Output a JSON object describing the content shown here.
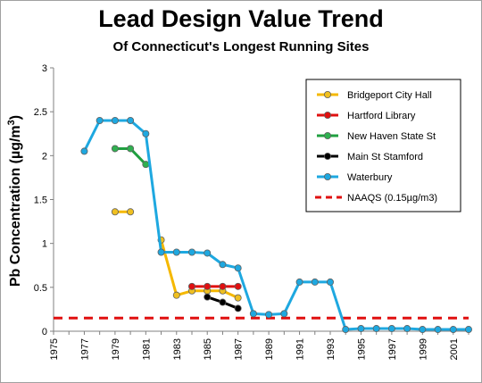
{
  "chart_data": {
    "type": "line",
    "title": "Lead Design Value Trend",
    "subtitle": "Of Connecticut's Longest Running Sites",
    "ylabel_main": "Pb Concentration  (µg/m",
    "ylabel_sup": "3",
    "ylabel_end": ")",
    "xlabel": "",
    "xlim": [
      1975,
      2002
    ],
    "ylim": [
      0,
      3
    ],
    "x_ticks": [
      "1975",
      "1977",
      "1979",
      "1981",
      "1983",
      "1985",
      "1987",
      "1989",
      "1991",
      "1993",
      "1995",
      "1997",
      "1999",
      "2001"
    ],
    "y_ticks": [
      "0",
      "0.5",
      "1",
      "1.5",
      "2",
      "2.5",
      "3"
    ],
    "grid": false,
    "legend_position": "upper-right",
    "series": [
      {
        "name": "Bridgeport City Hall",
        "color": "#f5b800",
        "marker": "#f0c020",
        "segments": [
          [
            [
              1979,
              1.36
            ],
            [
              1980,
              1.36
            ]
          ],
          [
            [
              1982,
              1.04
            ],
            [
              1983,
              0.41
            ],
            [
              1984,
              0.46
            ],
            [
              1985,
              0.46
            ],
            [
              1986,
              0.46
            ],
            [
              1987,
              0.38
            ]
          ]
        ]
      },
      {
        "name": "Hartford Library",
        "color": "#e01010",
        "marker": "#e01010",
        "segments": [
          [
            [
              1984,
              0.51
            ],
            [
              1985,
              0.51
            ],
            [
              1986,
              0.51
            ],
            [
              1987,
              0.51
            ]
          ]
        ]
      },
      {
        "name": "New Haven State St",
        "color": "#20a040",
        "marker": "#30b050",
        "segments": [
          [
            [
              1979,
              2.08
            ],
            [
              1980,
              2.08
            ],
            [
              1981,
              1.9
            ]
          ]
        ]
      },
      {
        "name": "Main St Stamford",
        "color": "#000000",
        "marker": "#000000",
        "segments": [
          [
            [
              1985,
              0.39
            ],
            [
              1986,
              0.33
            ],
            [
              1987,
              0.26
            ]
          ]
        ]
      },
      {
        "name": "Waterbury",
        "color": "#1ea8e0",
        "marker": "#1ea8e0",
        "segments": [
          [
            [
              1977,
              2.05
            ],
            [
              1978,
              2.4
            ],
            [
              1979,
              2.4
            ],
            [
              1980,
              2.4
            ],
            [
              1981,
              2.25
            ],
            [
              1982,
              0.9
            ],
            [
              1983,
              0.9
            ],
            [
              1984,
              0.9
            ],
            [
              1985,
              0.89
            ],
            [
              1986,
              0.76
            ],
            [
              1987,
              0.72
            ],
            [
              1988,
              0.2
            ],
            [
              1989,
              0.19
            ],
            [
              1990,
              0.2
            ],
            [
              1991,
              0.56
            ],
            [
              1992,
              0.56
            ],
            [
              1993,
              0.56
            ],
            [
              1994,
              0.02
            ],
            [
              1995,
              0.03
            ],
            [
              1996,
              0.03
            ],
            [
              1997,
              0.03
            ],
            [
              1998,
              0.03
            ],
            [
              1999,
              0.02
            ],
            [
              2000,
              0.02
            ],
            [
              2001,
              0.02
            ],
            [
              2002,
              0.02
            ]
          ]
        ]
      }
    ],
    "reference_line": {
      "name": "NAAQS (0.15µg/m3)",
      "y": 0.15,
      "color": "#e01010"
    }
  }
}
